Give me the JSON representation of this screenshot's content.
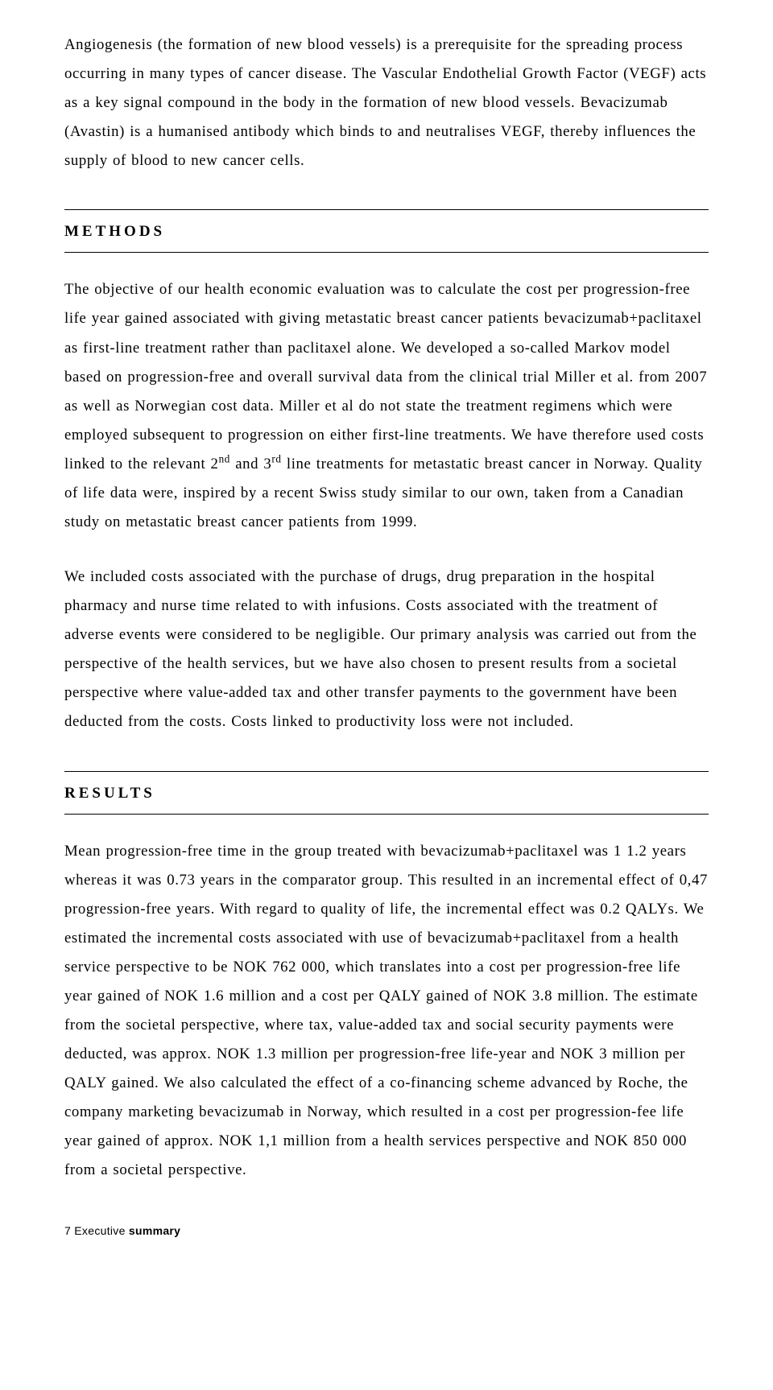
{
  "intro": {
    "text": "Angiogenesis (the formation of new blood vessels) is a prerequisite for the spreading process occurring in many types of cancer disease. The Vascular Endothelial Growth Factor (VEGF) acts as a key signal compound in the body in the formation of new blood vessels. Bevacizumab (Avastin) is a humanised antibody which binds to and neutralises VEGF, thereby influences the supply of blood to new cancer cells."
  },
  "methods": {
    "heading": "METHODS",
    "p1_part1": "The objective of our health economic evaluation was to calculate the cost per progression-free life year gained associated with giving metastatic breast cancer patients bevacizumab+paclitaxel as first-line treatment rather than paclitaxel alone. We developed a so-called Markov model based on progression-free and overall survival data from the clinical trial Miller et al. from 2007 as well as Norwegian cost data. Miller et al do not state the treatment regimens which were employed subsequent to progression on either first-line treatments. We have therefore used costs linked to the relevant 2",
    "p1_sup1": "nd",
    "p1_mid": " and 3",
    "p1_sup2": "rd",
    "p1_part2": " line treatments for metastatic breast cancer in Norway. Quality of life data were, inspired by a recent Swiss study similar to our own, taken from a Canadian study on metastatic breast cancer patients from 1999.",
    "p2": "We included costs associated with the purchase of drugs, drug preparation in the hospital pharmacy and nurse time related to with infusions. Costs associated with the treatment of adverse events were considered to be negligible. Our primary analysis was carried out from the perspective of the health services, but we have also chosen to present results from a societal perspective where value-added tax and other transfer payments to the government have been deducted from the costs. Costs linked to productivity loss were not included."
  },
  "results": {
    "heading": "RESULTS",
    "p1": "Mean progression-free time in the group treated with bevacizumab+paclitaxel was 1 1.2 years whereas it was 0.73 years in the comparator group. This resulted in an incremental effect of 0,47 progression-free years. With regard to quality of life, the incremental effect was 0.2 QALYs. We estimated the incremental costs associated with use of bevacizumab+paclitaxel from a health service perspective to be NOK 762 000, which translates into a cost per progression-free life year gained of NOK 1.6 million and a cost per QALY gained of NOK 3.8 million. The estimate from the societal perspective, where tax, value-added tax and social security payments were deducted, was approx. NOK 1.3 million per progression-free life-year and NOK 3 million per QALY gained. We also calculated the effect of a co-financing scheme advanced by Roche, the company marketing bevacizumab in Norway, which resulted in a cost per progression-fee life year gained of approx. NOK 1,1 million from a health services perspective and NOK 850 000 from a societal perspective."
  },
  "footer": {
    "page": "7",
    "label_plain": "Executive ",
    "label_bold": "summary"
  }
}
